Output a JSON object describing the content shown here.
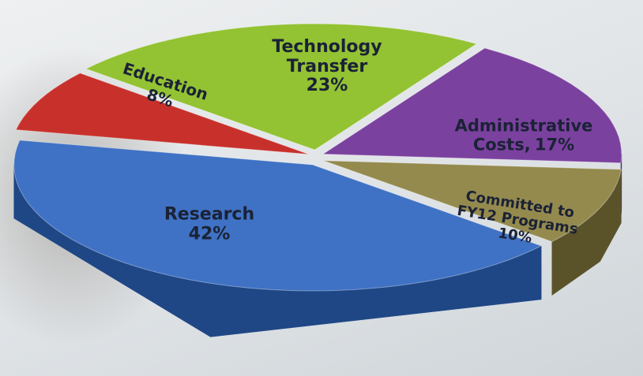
{
  "chart_data": {
    "type": "pie3d",
    "categories": [
      "Research",
      "Education",
      "Technology Transfer",
      "Administrative Costs,",
      "Committed to FY12 Programs"
    ],
    "values": [
      42,
      8,
      23,
      17,
      10
    ],
    "value_labels": [
      "42%",
      "8%",
      "23%",
      "17%",
      "10%"
    ],
    "colors": [
      "#3f72c4",
      "#c8312b",
      "#93c233",
      "#7b419f",
      "#948a4e"
    ],
    "side_colors": [
      "#1f4786",
      "#7e1a16",
      "#5c7f1a",
      "#4b2166",
      "#5a532a"
    ]
  }
}
